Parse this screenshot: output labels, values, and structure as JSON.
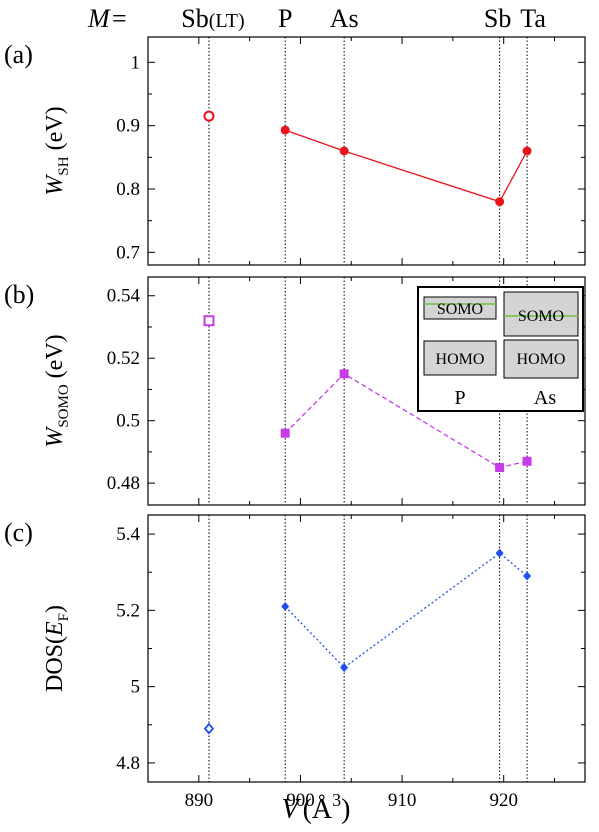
{
  "header": {
    "prefix": "M",
    "eq": "=",
    "labels": [
      {
        "text": "Sb",
        "sub": "(LT)",
        "x": 891
      },
      {
        "text": "P",
        "x": 898.5
      },
      {
        "text": "As",
        "x": 904.3
      },
      {
        "text": "Sb",
        "x": 919.6
      },
      {
        "text": "Ta",
        "x": 922.3
      }
    ]
  },
  "colors": {
    "red": "#e8141c",
    "magenta": "#c83ce8",
    "blue": "#1f4ff0",
    "somo_line": "#6fc040",
    "box_fill": "#d4d4d4"
  },
  "xaxis": {
    "label": "V",
    "unit": "(Å",
    "sup": "3",
    "close": ")",
    "range": [
      885,
      928
    ],
    "ticks": [
      890,
      900,
      910,
      920
    ],
    "tick_labels": [
      "890",
      "900",
      "910",
      "920"
    ]
  },
  "vlines": [
    891,
    898.5,
    904.3,
    919.6,
    922.3
  ],
  "chart_data": [
    {
      "type": "line",
      "panel": "(a)",
      "ylabel_main": "W",
      "ylabel_sub": "SH",
      "ylabel_unit": "(eV)",
      "ylim": [
        0.68,
        1.04
      ],
      "yticks": [
        0.7,
        0.8,
        0.9,
        1.0
      ],
      "ytick_labels": [
        "0.7",
        "0.8",
        "0.9",
        "1"
      ],
      "series": [
        {
          "style": "solid",
          "marker": "circle",
          "color": "red",
          "x": [
            898.5,
            904.3,
            919.6,
            922.3
          ],
          "y": [
            0.893,
            0.86,
            0.78,
            0.86
          ]
        },
        {
          "style": "none",
          "marker": "circle-open",
          "color": "red",
          "x": [
            891
          ],
          "y": [
            0.915
          ]
        }
      ]
    },
    {
      "type": "line",
      "panel": "(b)",
      "ylabel_main": "W",
      "ylabel_sub": "SOMO",
      "ylabel_unit": "(eV)",
      "ylim": [
        0.473,
        0.546
      ],
      "yticks": [
        0.48,
        0.5,
        0.52,
        0.54
      ],
      "ytick_labels": [
        "0.48",
        "0.5",
        "0.52",
        "0.54"
      ],
      "series": [
        {
          "style": "dashed",
          "marker": "square",
          "color": "magenta",
          "x": [
            898.5,
            904.3,
            919.6,
            922.3
          ],
          "y": [
            0.496,
            0.515,
            0.485,
            0.487
          ]
        },
        {
          "style": "none",
          "marker": "square-open",
          "color": "magenta",
          "x": [
            891
          ],
          "y": [
            0.532
          ]
        }
      ],
      "inset": {
        "left": {
          "somo": "SOMO",
          "homo": "HOMO",
          "label": "P"
        },
        "right": {
          "somo": "SOMO",
          "homo": "HOMO",
          "label": "As"
        }
      }
    },
    {
      "type": "line",
      "panel": "(c)",
      "ylabel_pre": "DOS(",
      "ylabel_main": "E",
      "ylabel_sub": "F",
      "ylabel_post": ")",
      "ylim": [
        4.75,
        5.45
      ],
      "yticks": [
        4.8,
        5.0,
        5.2,
        5.4
      ],
      "ytick_labels": [
        "4.8",
        "5",
        "5.2",
        "5.4"
      ],
      "series": [
        {
          "style": "dotted",
          "marker": "diamond",
          "color": "blue",
          "x": [
            898.5,
            904.3,
            919.6,
            922.3
          ],
          "y": [
            5.21,
            5.05,
            5.35,
            5.29
          ]
        },
        {
          "style": "none",
          "marker": "diamond-open",
          "color": "blue",
          "x": [
            891
          ],
          "y": [
            4.89
          ]
        }
      ]
    }
  ]
}
